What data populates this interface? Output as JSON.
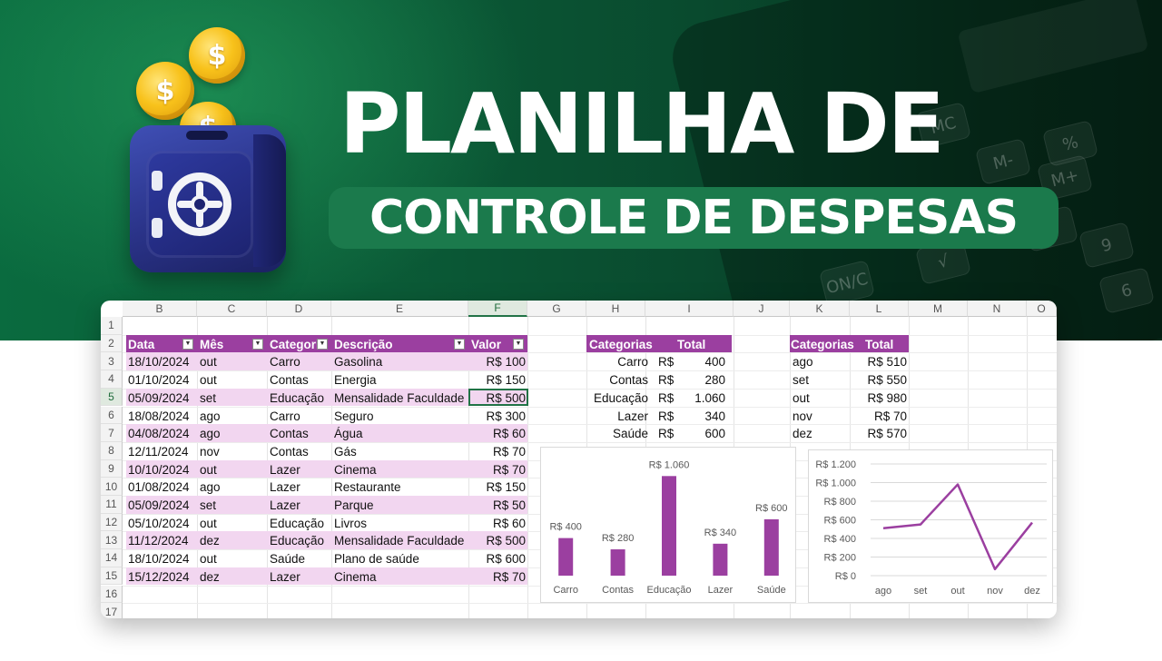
{
  "banner": {
    "title_line1": "PLANILHA DE",
    "title_line2": "CONTROLE DE DESPESAS",
    "coin_symbol": "$",
    "colors": {
      "bg": "#0b5d38",
      "pill": "#1b7a4c",
      "coin": "#f8c21b",
      "safe": "#2a3388"
    }
  },
  "calculator_keys": [
    "MC",
    "M-",
    "M+",
    "%",
    "9",
    "8",
    "ON/C",
    "6",
    "√"
  ],
  "spreadsheet": {
    "columns": [
      "B",
      "C",
      "D",
      "E",
      "F",
      "G",
      "H",
      "I",
      "J",
      "K",
      "L",
      "M",
      "N",
      "O"
    ],
    "selected_column": "F",
    "rows": [
      "1",
      "2",
      "3",
      "4",
      "5",
      "6",
      "7",
      "8",
      "9",
      "10",
      "11",
      "12",
      "13",
      "14",
      "15",
      "16",
      "17"
    ],
    "selected_row": "5",
    "expenses_table": {
      "headers": [
        "Data",
        "Mês",
        "Categoria",
        "Descrição",
        "Valor"
      ],
      "rows": [
        [
          "18/10/2024",
          "out",
          "Carro",
          "Gasolina",
          "R$ 100"
        ],
        [
          "01/10/2024",
          "out",
          "Contas",
          "Energia",
          "R$ 150"
        ],
        [
          "05/09/2024",
          "set",
          "Educação",
          "Mensalidade Faculdade",
          "R$ 500"
        ],
        [
          "18/08/2024",
          "ago",
          "Carro",
          "Seguro",
          "R$ 300"
        ],
        [
          "04/08/2024",
          "ago",
          "Contas",
          "Água",
          "R$ 60"
        ],
        [
          "12/11/2024",
          "nov",
          "Contas",
          "Gás",
          "R$ 70"
        ],
        [
          "10/10/2024",
          "out",
          "Lazer",
          "Cinema",
          "R$ 70"
        ],
        [
          "01/08/2024",
          "ago",
          "Lazer",
          "Restaurante",
          "R$ 150"
        ],
        [
          "05/09/2024",
          "set",
          "Lazer",
          "Parque",
          "R$ 50"
        ],
        [
          "05/10/2024",
          "out",
          "Educação",
          "Livros",
          "R$ 60"
        ],
        [
          "11/12/2024",
          "dez",
          "Educação",
          "Mensalidade Faculdade",
          "R$ 500"
        ],
        [
          "18/10/2024",
          "out",
          "Saúde",
          "Plano de saúde",
          "R$ 600"
        ],
        [
          "15/12/2024",
          "dez",
          "Lazer",
          "Cinema",
          "R$ 70"
        ]
      ],
      "header_color": "#9b3fa0",
      "band_color": "#f2d6f0"
    },
    "category_table": {
      "headers": [
        "Categorias",
        "Total"
      ],
      "currency": "R$",
      "rows": [
        [
          "Carro",
          "400"
        ],
        [
          "Contas",
          "280"
        ],
        [
          "Educação",
          "1.060"
        ],
        [
          "Lazer",
          "340"
        ],
        [
          "Saúde",
          "600"
        ]
      ]
    },
    "month_table": {
      "headers": [
        "Categorias",
        "Total"
      ],
      "rows": [
        [
          "ago",
          "R$ 510"
        ],
        [
          "set",
          "R$ 550"
        ],
        [
          "out",
          "R$ 980"
        ],
        [
          "nov",
          "R$ 70"
        ],
        [
          "dez",
          "R$ 570"
        ]
      ]
    }
  },
  "chart_data": [
    {
      "type": "bar",
      "categories": [
        "Carro",
        "Contas",
        "Educação",
        "Lazer",
        "Saúde"
      ],
      "values": [
        400,
        280,
        1060,
        340,
        600
      ],
      "data_labels": [
        "R$ 400",
        "R$ 280",
        "R$ 1.060",
        "R$ 340",
        "R$ 600"
      ],
      "ylim": [
        0,
        1150
      ],
      "grid": false,
      "color": "#9b3fa0"
    },
    {
      "type": "line",
      "categories": [
        "ago",
        "set",
        "out",
        "nov",
        "dez"
      ],
      "values": [
        510,
        550,
        980,
        70,
        570
      ],
      "ylim": [
        0,
        1200
      ],
      "yticks": [
        0,
        200,
        400,
        600,
        800,
        1000,
        1200
      ],
      "ytick_labels": [
        "R$ 0",
        "R$ 200",
        "R$ 400",
        "R$ 600",
        "R$ 800",
        "R$ 1.000",
        "R$ 1.200"
      ],
      "grid": true,
      "color": "#9b3fa0"
    }
  ]
}
